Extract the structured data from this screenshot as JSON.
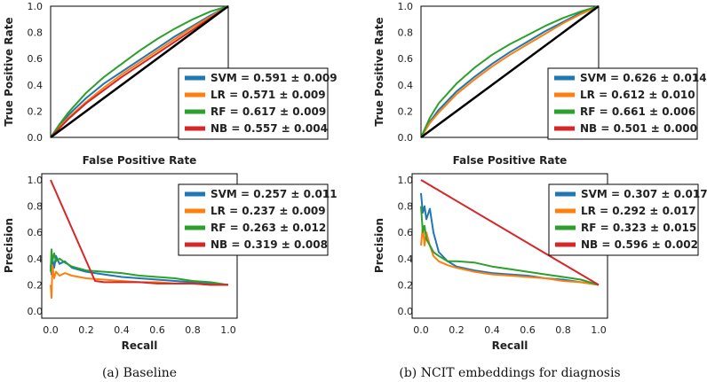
{
  "colors": {
    "SVM": "#1f77b4",
    "LR": "#ff7f0e",
    "RF": "#2ca02c",
    "NB": "#d62728",
    "diagonal": "#000000",
    "frame": "#000000"
  },
  "captions": [
    "(a) Baseline",
    "(b) NCIT embeddings for diagnosis"
  ],
  "chart_data": [
    {
      "id": "roc-baseline",
      "type": "line",
      "title": "",
      "xlabel": "False Positive Rate",
      "ylabel": "True Positive Rate",
      "xlim": [
        0,
        1
      ],
      "ylim": [
        0,
        1
      ],
      "xticks": [],
      "yticks": [
        "0.0",
        "0.2",
        "0.4",
        "0.6",
        "0.8",
        "1.0"
      ],
      "diagonal": true,
      "legend_position": "right",
      "legend": [
        "SVM = 0.591 ± 0.009",
        "LR = 0.571 ± 0.009",
        "RF = 0.617 ± 0.009",
        "NB = 0.557 ± 0.004"
      ],
      "series": [
        {
          "name": "SVM",
          "x": [
            0,
            0.05,
            0.1,
            0.2,
            0.3,
            0.4,
            0.5,
            0.6,
            0.7,
            0.8,
            0.9,
            1.0
          ],
          "y": [
            0,
            0.09,
            0.17,
            0.3,
            0.41,
            0.5,
            0.59,
            0.68,
            0.77,
            0.85,
            0.93,
            1.0
          ]
        },
        {
          "name": "LR",
          "x": [
            0,
            0.05,
            0.1,
            0.2,
            0.3,
            0.4,
            0.5,
            0.6,
            0.7,
            0.8,
            0.9,
            1.0
          ],
          "y": [
            0,
            0.08,
            0.15,
            0.27,
            0.38,
            0.48,
            0.57,
            0.66,
            0.75,
            0.84,
            0.92,
            1.0
          ]
        },
        {
          "name": "RF",
          "x": [
            0,
            0.05,
            0.1,
            0.2,
            0.3,
            0.4,
            0.5,
            0.6,
            0.7,
            0.8,
            0.9,
            1.0
          ],
          "y": [
            0,
            0.1,
            0.19,
            0.34,
            0.46,
            0.56,
            0.66,
            0.75,
            0.83,
            0.9,
            0.96,
            1.0
          ]
        },
        {
          "name": "NB",
          "x": [
            0,
            0.05,
            0.1,
            0.2,
            0.3,
            0.4,
            0.5,
            0.6,
            0.7,
            0.8,
            0.9,
            1.0
          ],
          "y": [
            0,
            0.07,
            0.14,
            0.26,
            0.36,
            0.46,
            0.55,
            0.64,
            0.73,
            0.82,
            0.91,
            1.0
          ]
        }
      ]
    },
    {
      "id": "roc-ncit",
      "type": "line",
      "title": "",
      "xlabel": "False Positive Rate",
      "ylabel": "True Positive Rate",
      "xlim": [
        0,
        1
      ],
      "ylim": [
        0,
        1
      ],
      "xticks": [],
      "yticks": [
        "0.0",
        "0.2",
        "0.4",
        "0.6",
        "0.8",
        "1.0"
      ],
      "diagonal": true,
      "legend_position": "right",
      "legend": [
        "SVM = 0.626 ± 0.014",
        "LR = 0.612 ± 0.010",
        "RF = 0.661 ± 0.006",
        "NB = 0.501 ± 0.000"
      ],
      "series": [
        {
          "name": "SVM",
          "x": [
            0,
            0.05,
            0.1,
            0.2,
            0.3,
            0.4,
            0.5,
            0.6,
            0.7,
            0.8,
            0.9,
            1.0
          ],
          "y": [
            0,
            0.12,
            0.21,
            0.35,
            0.46,
            0.56,
            0.65,
            0.73,
            0.81,
            0.88,
            0.95,
            1.0
          ]
        },
        {
          "name": "LR",
          "x": [
            0,
            0.05,
            0.1,
            0.2,
            0.3,
            0.4,
            0.5,
            0.6,
            0.7,
            0.8,
            0.9,
            1.0
          ],
          "y": [
            0,
            0.11,
            0.19,
            0.33,
            0.44,
            0.54,
            0.63,
            0.71,
            0.79,
            0.87,
            0.94,
            1.0
          ]
        },
        {
          "name": "RF",
          "x": [
            0,
            0.05,
            0.1,
            0.2,
            0.3,
            0.4,
            0.5,
            0.6,
            0.7,
            0.8,
            0.9,
            1.0
          ],
          "y": [
            0,
            0.15,
            0.26,
            0.41,
            0.53,
            0.63,
            0.71,
            0.78,
            0.85,
            0.91,
            0.96,
            1.0
          ]
        },
        {
          "name": "NB",
          "x": [
            0,
            1.0
          ],
          "y": [
            0,
            1.0
          ]
        }
      ]
    },
    {
      "id": "pr-baseline",
      "type": "line",
      "title": "",
      "xlabel": "Recall",
      "ylabel": "Precision",
      "xlim": [
        0,
        1
      ],
      "ylim": [
        0,
        1
      ],
      "xticks": [
        "0.0",
        "0.2",
        "0.4",
        "0.6",
        "0.8",
        "1.0"
      ],
      "yticks": [
        "0.0",
        "0.2",
        "0.4",
        "0.6",
        "0.8",
        "1.0"
      ],
      "diagonal": false,
      "legend_position": "upper right",
      "legend": [
        "SVM = 0.257 ± 0.011",
        "LR = 0.237 ± 0.009",
        "RF = 0.263 ± 0.012",
        "NB = 0.319 ± 0.008"
      ],
      "series": [
        {
          "name": "SVM",
          "x": [
            0.0,
            0.005,
            0.01,
            0.02,
            0.03,
            0.05,
            0.08,
            0.12,
            0.2,
            0.3,
            0.4,
            0.5,
            0.6,
            0.7,
            0.8,
            0.9,
            1.0
          ],
          "y": [
            0.35,
            0.28,
            0.4,
            0.33,
            0.42,
            0.36,
            0.38,
            0.33,
            0.3,
            0.28,
            0.26,
            0.25,
            0.24,
            0.23,
            0.22,
            0.21,
            0.2
          ]
        },
        {
          "name": "LR",
          "x": [
            0.0,
            0.005,
            0.01,
            0.02,
            0.03,
            0.05,
            0.08,
            0.12,
            0.2,
            0.3,
            0.4,
            0.5,
            0.6,
            0.7,
            0.8,
            0.9,
            1.0
          ],
          "y": [
            0.2,
            0.1,
            0.35,
            0.25,
            0.3,
            0.27,
            0.29,
            0.27,
            0.25,
            0.24,
            0.23,
            0.22,
            0.22,
            0.21,
            0.21,
            0.2,
            0.2
          ]
        },
        {
          "name": "RF",
          "x": [
            0.0,
            0.005,
            0.01,
            0.02,
            0.03,
            0.05,
            0.08,
            0.12,
            0.2,
            0.3,
            0.4,
            0.5,
            0.6,
            0.7,
            0.8,
            0.9,
            1.0
          ],
          "y": [
            0.3,
            0.47,
            0.38,
            0.44,
            0.38,
            0.4,
            0.37,
            0.34,
            0.31,
            0.3,
            0.29,
            0.27,
            0.26,
            0.25,
            0.23,
            0.22,
            0.2
          ]
        },
        {
          "name": "NB",
          "x": [
            0.0,
            0.25,
            0.3,
            0.4,
            0.5,
            0.6,
            0.7,
            0.8,
            0.9,
            1.0
          ],
          "y": [
            1.0,
            0.23,
            0.22,
            0.22,
            0.22,
            0.21,
            0.21,
            0.21,
            0.2,
            0.2
          ]
        }
      ]
    },
    {
      "id": "pr-ncit",
      "type": "line",
      "title": "",
      "xlabel": "Recall",
      "ylabel": "Precision",
      "xlim": [
        0,
        1
      ],
      "ylim": [
        0,
        1
      ],
      "xticks": [
        "0.0",
        "0.2",
        "0.4",
        "0.6",
        "0.8",
        "1.0"
      ],
      "yticks": [
        "0.0",
        "0.2",
        "0.4",
        "0.6",
        "0.8",
        "1.0"
      ],
      "diagonal": false,
      "legend_position": "upper right",
      "legend": [
        "SVM = 0.307 ± 0.017",
        "LR = 0.292 ± 0.017",
        "RF = 0.323 ± 0.015",
        "NB = 0.596 ± 0.002"
      ],
      "series": [
        {
          "name": "SVM",
          "x": [
            0.0,
            0.01,
            0.02,
            0.03,
            0.05,
            0.07,
            0.1,
            0.15,
            0.2,
            0.3,
            0.4,
            0.5,
            0.6,
            0.7,
            0.8,
            0.9,
            1.0
          ],
          "y": [
            0.9,
            0.75,
            0.8,
            0.7,
            0.78,
            0.6,
            0.45,
            0.38,
            0.34,
            0.31,
            0.29,
            0.28,
            0.27,
            0.25,
            0.24,
            0.22,
            0.2
          ]
        },
        {
          "name": "LR",
          "x": [
            0.0,
            0.01,
            0.02,
            0.03,
            0.05,
            0.07,
            0.1,
            0.15,
            0.2,
            0.3,
            0.4,
            0.5,
            0.6,
            0.7,
            0.8,
            0.9,
            1.0
          ],
          "y": [
            0.5,
            0.65,
            0.5,
            0.6,
            0.5,
            0.42,
            0.38,
            0.35,
            0.33,
            0.3,
            0.28,
            0.27,
            0.26,
            0.25,
            0.23,
            0.22,
            0.2
          ]
        },
        {
          "name": "RF",
          "x": [
            0.0,
            0.01,
            0.02,
            0.03,
            0.05,
            0.07,
            0.1,
            0.15,
            0.2,
            0.3,
            0.4,
            0.5,
            0.6,
            0.7,
            0.8,
            0.9,
            1.0
          ],
          "y": [
            0.8,
            0.6,
            0.65,
            0.55,
            0.5,
            0.45,
            0.42,
            0.38,
            0.38,
            0.37,
            0.34,
            0.32,
            0.3,
            0.28,
            0.26,
            0.24,
            0.2
          ]
        },
        {
          "name": "NB",
          "x": [
            0.0,
            1.0
          ],
          "y": [
            1.0,
            0.2
          ]
        }
      ]
    }
  ]
}
